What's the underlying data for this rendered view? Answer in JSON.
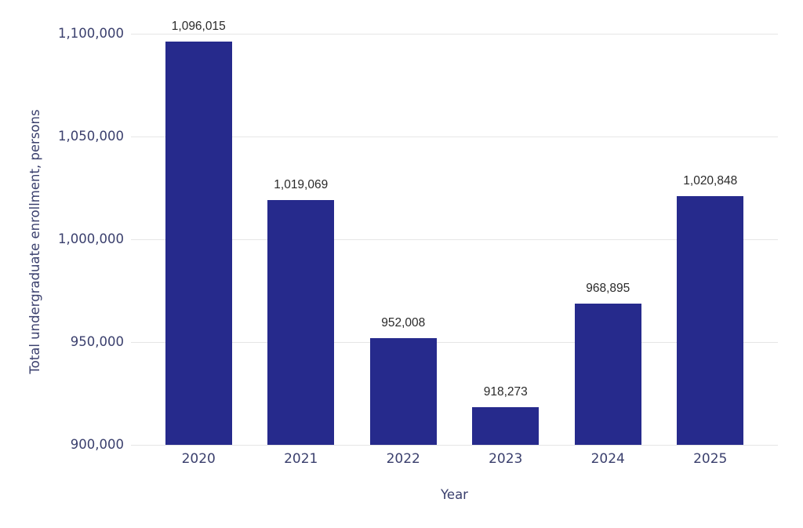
{
  "chart_data": {
    "type": "bar",
    "title": "",
    "xlabel": "Year",
    "ylabel": "Total undergraduate enrollment, persons",
    "categories": [
      "2020",
      "2021",
      "2022",
      "2023",
      "2024",
      "2025"
    ],
    "values": [
      1096015,
      1019069,
      952008,
      918273,
      968895,
      1020848
    ],
    "value_labels": [
      "1,096,015",
      "1,019,069",
      "952,008",
      "918,273",
      "968,895",
      "1,020,848"
    ],
    "ylim": [
      900000,
      1100000
    ],
    "yticks": [
      {
        "value": 900000,
        "label": "900,000"
      },
      {
        "value": 950000,
        "label": "950,000"
      },
      {
        "value": 1000000,
        "label": "1,000,000"
      },
      {
        "value": 1050000,
        "label": "1,050,000"
      },
      {
        "value": 1100000,
        "label": "1,100,000"
      }
    ],
    "grid": true,
    "legend": "none",
    "colors": {
      "bar": "#262a8c",
      "axis_text": "#3a3f6d",
      "value_label_text": "#2a2a2a",
      "gridline": "#e6e6e6",
      "background": "#ffffff"
    }
  }
}
